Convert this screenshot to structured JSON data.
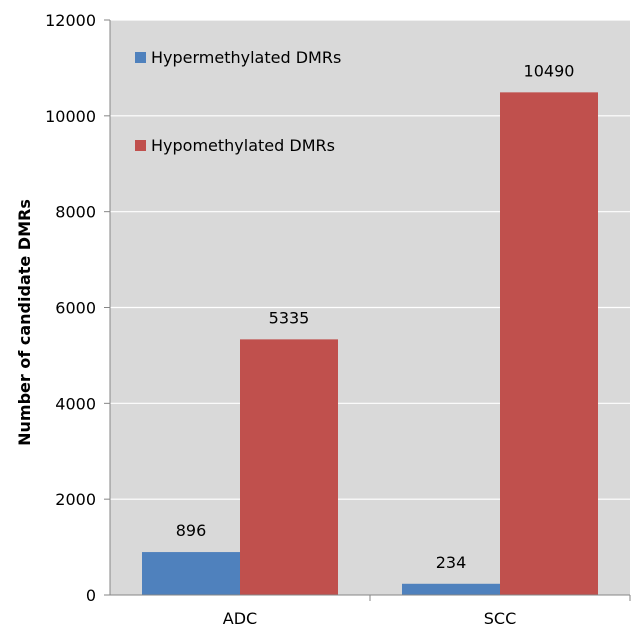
{
  "chart_data": {
    "type": "bar",
    "categories": [
      "ADC",
      "SCC"
    ],
    "series": [
      {
        "name": "Hypermethylated DMRs",
        "values": [
          896,
          234
        ],
        "color": "#4F81BD"
      },
      {
        "name": "Hypomethylated DMRs",
        "values": [
          5335,
          10490
        ],
        "color": "#C0504D"
      }
    ],
    "ylabel": "Number  of  candidate DMRs",
    "xlabel": "",
    "ylim": [
      0,
      12000
    ],
    "yticks": [
      0,
      2000,
      4000,
      6000,
      8000,
      10000,
      12000
    ],
    "grid": true,
    "plot_background": "#D9D9D9",
    "legend_position": "top-left inside"
  }
}
